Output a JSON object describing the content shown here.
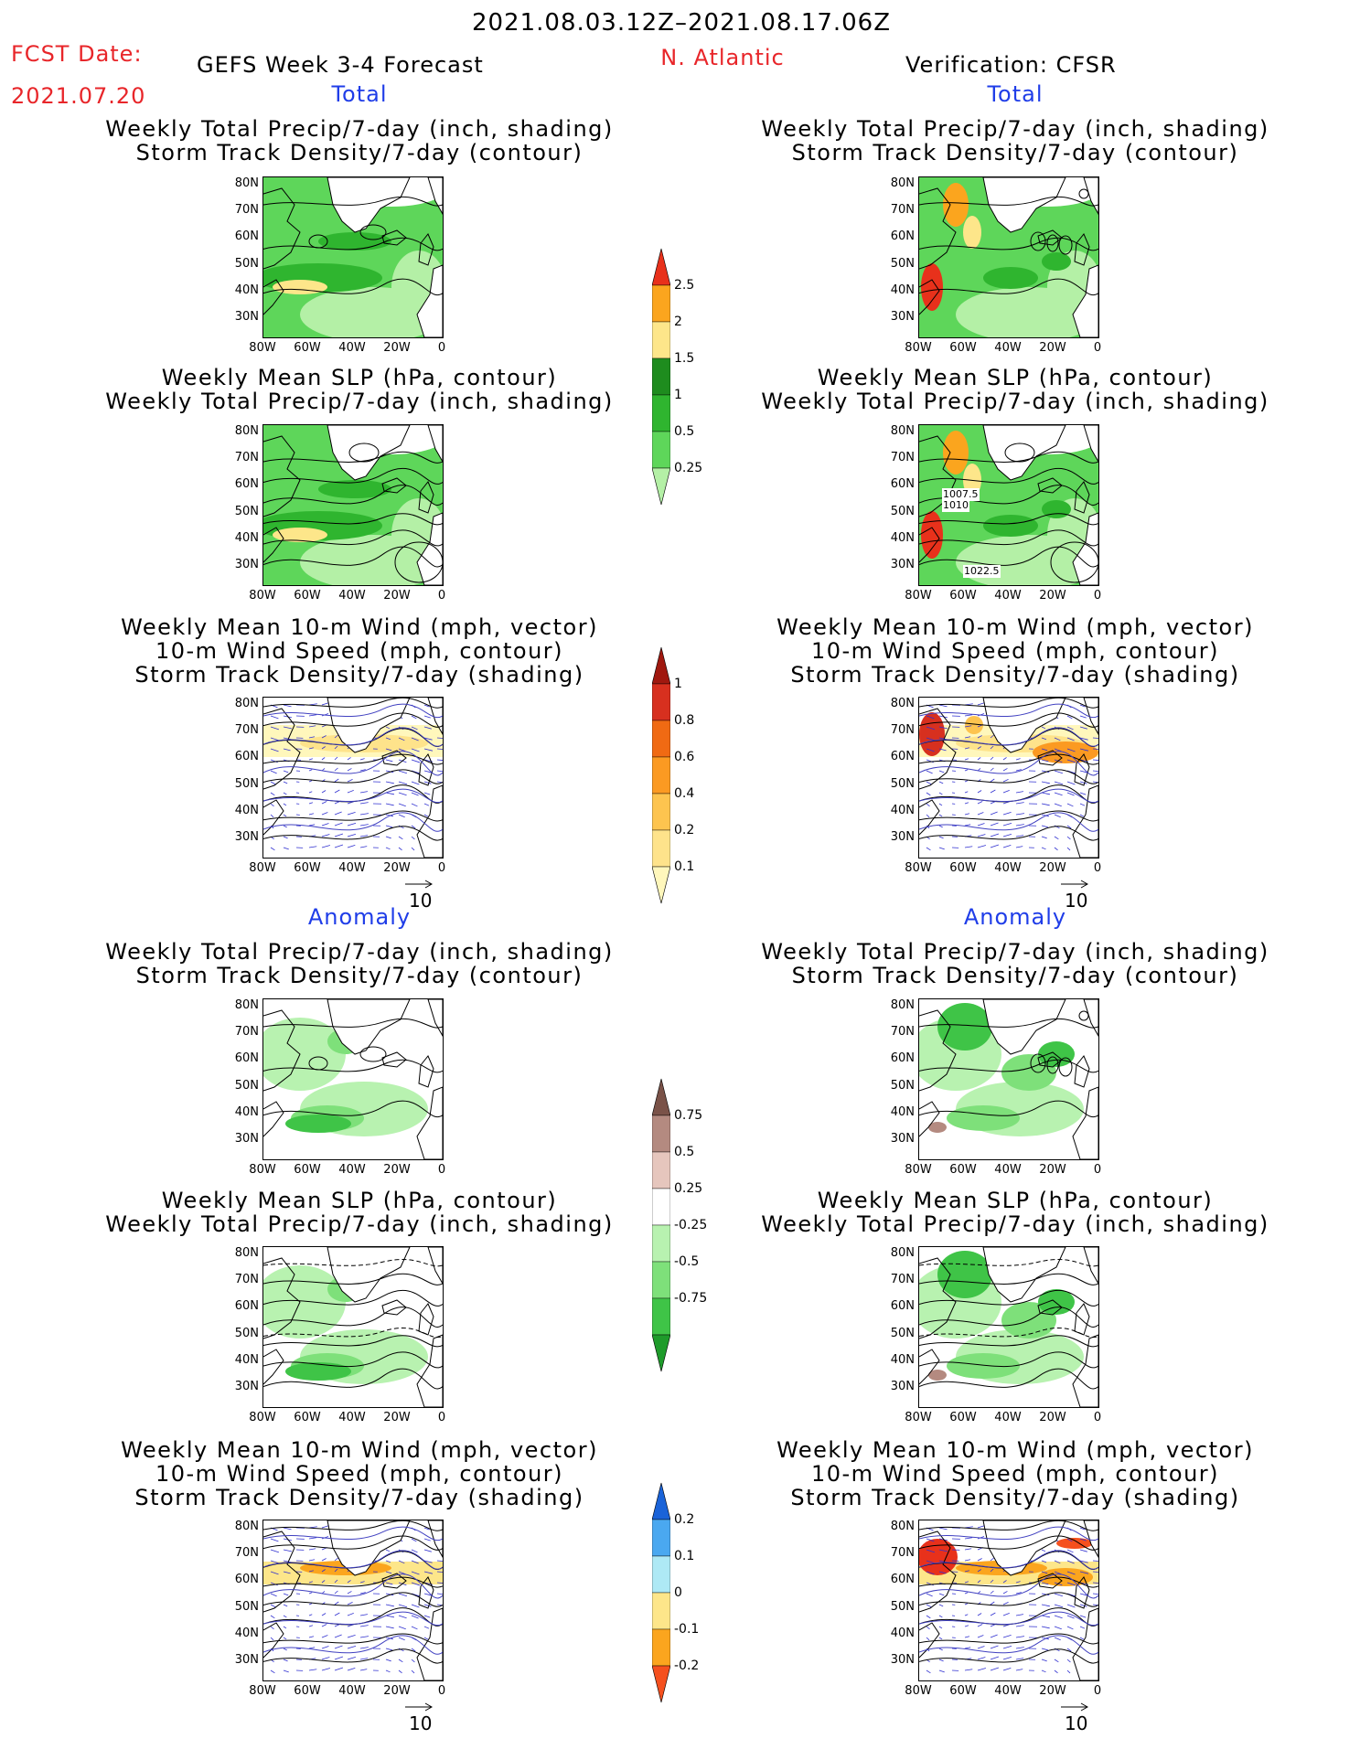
{
  "header": {
    "date_range": "2021.08.03.12Z–2021.08.17.06Z",
    "fcst_label": "FCST Date:",
    "fcst_date": "2021.07.20",
    "model": "GEFS Week 3-4 Forecast",
    "region": "N. Atlantic",
    "verification": "Verification: CFSR"
  },
  "sections": {
    "total": "Total",
    "anomaly": "Anomaly"
  },
  "titles": {
    "precip_storm": [
      "Weekly Total Precip/7-day (inch, shading)",
      "Storm Track Density/7-day (contour)"
    ],
    "slp_precip": [
      "Weekly Mean SLP (hPa, contour)",
      "Weekly Total Precip/7-day (inch, shading)"
    ],
    "wind_storm": [
      "Weekly Mean 10-m Wind (mph, vector)",
      "10-m Wind Speed (mph, contour)",
      "Storm Track Density/7-day (shading)"
    ]
  },
  "axes": {
    "lat_ticks": [
      "80N",
      "70N",
      "60N",
      "50N",
      "40N",
      "30N"
    ],
    "lon_ticks": [
      "80W",
      "60W",
      "40W",
      "20W",
      "0"
    ]
  },
  "vector_ref": "10",
  "contour_labels": {
    "slp_total_cfsr": [
      "1007.5",
      "1010",
      "1022.5"
    ]
  },
  "colorbars": {
    "precip_total": {
      "labels": [
        "0.25",
        "0.5",
        "1",
        "1.5",
        "2",
        "2.5"
      ],
      "colors": [
        "#b4f0a6",
        "#5ed65a",
        "#2fb52f",
        "#1e8c1e",
        "#fde68a",
        "#fba51e",
        "#e8311b"
      ]
    },
    "storm_total": {
      "labels": [
        "0.1",
        "0.2",
        "0.4",
        "0.6",
        "0.8",
        "1"
      ],
      "colors": [
        "#fff7bc",
        "#fee38b",
        "#fdc44f",
        "#fb9a22",
        "#f06a13",
        "#d7301f",
        "#a0180f"
      ]
    },
    "precip_anom": {
      "labels": [
        "0.75",
        "0.5",
        "0.25",
        "-0.25",
        "-0.5",
        "-0.75"
      ],
      "colors": [
        "#1e9b2a",
        "#3fc447",
        "#7ee07a",
        "#b8f2b0",
        "#ffffff",
        "#e6c6bd",
        "#b48a80",
        "#7a5248"
      ]
    },
    "storm_anom": {
      "labels": [
        "0.2",
        "0.1",
        "0",
        "-0.1",
        "-0.2"
      ],
      "colors": [
        "#f5501e",
        "#fba51e",
        "#fde68a",
        "#aee9f5",
        "#4aa8f0",
        "#1a63d8"
      ]
    }
  }
}
